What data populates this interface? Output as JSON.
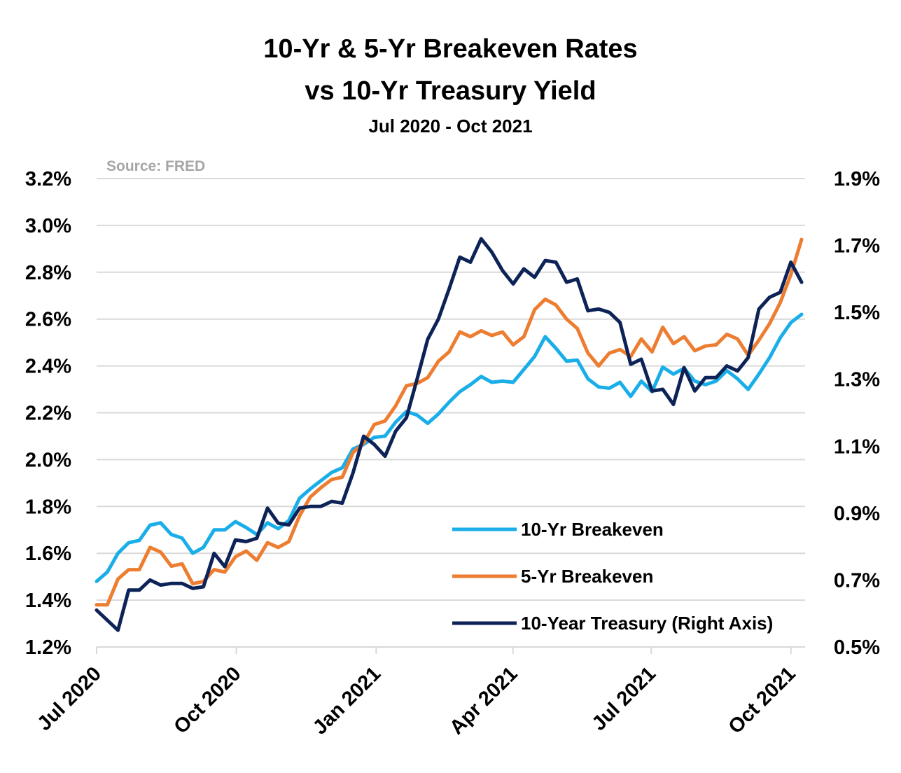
{
  "chart_data": {
    "type": "line",
    "title": "10-Yr & 5-Yr Breakeven Rates",
    "title2": "vs 10-Yr Treasury Yield",
    "subtitle": "Jul 2020 - Oct 2021",
    "source": "Source: FRED",
    "x_ticks": [
      "Jul 2020",
      "Oct 2020",
      "Jan 2021",
      "Apr 2021",
      "Jul 2021",
      "Oct 2021"
    ],
    "y_left_ticks": [
      "1.2%",
      "1.4%",
      "1.6%",
      "1.8%",
      "2.0%",
      "2.2%",
      "2.4%",
      "2.6%",
      "2.8%",
      "3.0%",
      "3.2%"
    ],
    "y_right_ticks": [
      "0.5%",
      "0.7%",
      "0.9%",
      "1.1%",
      "1.3%",
      "1.5%",
      "1.7%",
      "1.9%"
    ],
    "y_left_range": [
      1.2,
      3.2
    ],
    "y_right_range": [
      0.5,
      1.9
    ],
    "grid": true,
    "legend_position": "bottom-right",
    "x_date_range": [
      "2020-07-01",
      "2021-10-08"
    ],
    "series": [
      {
        "name": "10-Yr Breakeven",
        "color": "#1aaee8",
        "axis": "left",
        "values": [
          1.48,
          1.52,
          1.6,
          1.645,
          1.655,
          1.72,
          1.73,
          1.68,
          1.665,
          1.6,
          1.625,
          1.7,
          1.7,
          1.735,
          1.71,
          1.68,
          1.73,
          1.705,
          1.74,
          1.835,
          1.875,
          1.91,
          1.945,
          1.965,
          2.045,
          2.065,
          2.095,
          2.1,
          2.16,
          2.205,
          2.19,
          2.155,
          2.195,
          2.245,
          2.29,
          2.32,
          2.355,
          2.33,
          2.335,
          2.33,
          2.385,
          2.44,
          2.525,
          2.475,
          2.42,
          2.425,
          2.345,
          2.31,
          2.305,
          2.33,
          2.27,
          2.335,
          2.29,
          2.395,
          2.365,
          2.39,
          2.335,
          2.32,
          2.335,
          2.38,
          2.345,
          2.3,
          2.365,
          2.435,
          2.52,
          2.585,
          2.62
        ]
      },
      {
        "name": "5-Yr Breakeven",
        "color": "#ed7d31",
        "axis": "left",
        "values": [
          1.38,
          1.38,
          1.49,
          1.53,
          1.53,
          1.625,
          1.605,
          1.545,
          1.555,
          1.47,
          1.48,
          1.53,
          1.52,
          1.585,
          1.61,
          1.57,
          1.645,
          1.625,
          1.65,
          1.76,
          1.84,
          1.88,
          1.915,
          1.925,
          2.03,
          2.07,
          2.15,
          2.165,
          2.23,
          2.315,
          2.325,
          2.35,
          2.42,
          2.46,
          2.545,
          2.525,
          2.55,
          2.53,
          2.545,
          2.49,
          2.525,
          2.64,
          2.685,
          2.66,
          2.6,
          2.56,
          2.455,
          2.4,
          2.455,
          2.47,
          2.44,
          2.515,
          2.46,
          2.565,
          2.495,
          2.525,
          2.465,
          2.485,
          2.49,
          2.535,
          2.515,
          2.445,
          2.51,
          2.58,
          2.67,
          2.79,
          2.94
        ]
      },
      {
        "name": "10-Year Treasury (Right Axis)",
        "color": "#0d2358",
        "axis": "right",
        "values": [
          0.61,
          0.58,
          0.55,
          0.67,
          0.67,
          0.7,
          0.685,
          0.69,
          0.69,
          0.675,
          0.68,
          0.78,
          0.74,
          0.82,
          0.815,
          0.825,
          0.915,
          0.87,
          0.865,
          0.915,
          0.92,
          0.92,
          0.935,
          0.93,
          1.02,
          1.13,
          1.105,
          1.07,
          1.145,
          1.185,
          1.3,
          1.42,
          1.48,
          1.57,
          1.665,
          1.65,
          1.72,
          1.68,
          1.625,
          1.585,
          1.63,
          1.605,
          1.655,
          1.65,
          1.59,
          1.6,
          1.505,
          1.51,
          1.5,
          1.47,
          1.345,
          1.36,
          1.265,
          1.27,
          1.225,
          1.335,
          1.265,
          1.305,
          1.305,
          1.34,
          1.325,
          1.365,
          1.51,
          1.545,
          1.56,
          1.65,
          1.59
        ]
      }
    ]
  }
}
